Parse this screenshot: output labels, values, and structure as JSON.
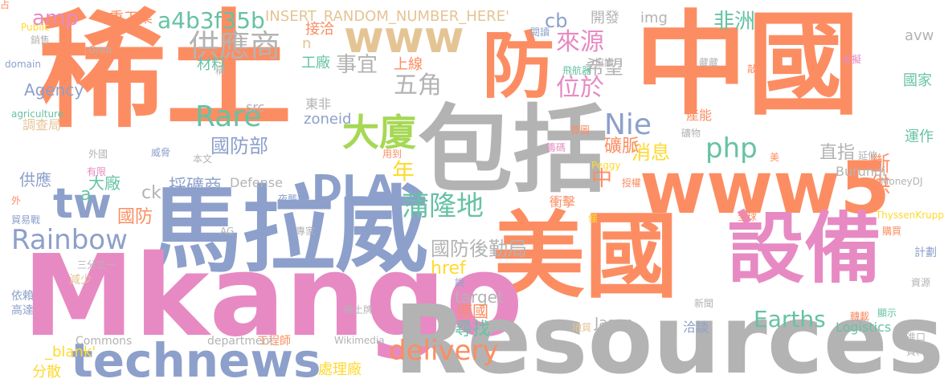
{
  "palette": {
    "orange": "#fc8d62",
    "grey": "#b3b3b3",
    "blue": "#8da0cb",
    "pink": "#e78ac3",
    "green": "#66c2a5",
    "lime": "#a6d854",
    "yellow": "#ffd92f",
    "tan": "#e5c494"
  },
  "words": [
    {
      "text": "稀土",
      "color": "orange"
    },
    {
      "text": "中國",
      "color": "orange"
    },
    {
      "text": "防",
      "color": "orange"
    },
    {
      "text": "包括",
      "color": "grey"
    },
    {
      "text": "www5",
      "color": "orange"
    },
    {
      "text": "馬拉威",
      "color": "blue"
    },
    {
      "text": "美國",
      "color": "orange"
    },
    {
      "text": "設備",
      "color": "pink"
    },
    {
      "text": "Mkango",
      "color": "pink"
    },
    {
      "text": "Resources",
      "color": "grey"
    },
    {
      "text": "technews",
      "color": "blue"
    },
    {
      "text": "www",
      "color": "tan"
    },
    {
      "text": "tw",
      "color": "blue"
    },
    {
      "text": "DLA",
      "color": "blue"
    },
    {
      "text": "大廈",
      "color": "lime"
    },
    {
      "text": "供應商",
      "color": "grey"
    },
    {
      "text": "Rare",
      "color": "green"
    },
    {
      "text": "Nie",
      "color": "blue"
    },
    {
      "text": "php",
      "color": "green"
    },
    {
      "text": "Rainbow",
      "color": "blue"
    },
    {
      "text": "蒲隆地",
      "color": "green"
    },
    {
      "text": "delivery",
      "color": "orange"
    },
    {
      "text": "Earths",
      "color": "green"
    },
    {
      "text": "a4b3f35b",
      "color": "green"
    },
    {
      "text": "amp",
      "color": "pink"
    },
    {
      "text": "來源",
      "color": "pink"
    },
    {
      "text": "位於",
      "color": "pink"
    },
    {
      "text": "五角",
      "color": "grey"
    },
    {
      "text": "事宜",
      "color": "grey"
    },
    {
      "text": "非洲",
      "color": "green"
    },
    {
      "text": "國防部",
      "color": "blue"
    },
    {
      "text": "年",
      "color": "yellow"
    },
    {
      "text": "中",
      "color": "orange"
    },
    {
      "text": "斷供",
      "color": "orange"
    },
    {
      "text": "直指",
      "color": "grey"
    },
    {
      "text": "消息",
      "color": "yellow"
    },
    {
      "text": "礦脈",
      "color": "orange"
    },
    {
      "text": "cb",
      "color": "blue"
    },
    {
      "text": "INSERT_RANDOM_NUMBER_HERE'",
      "color": "tan"
    },
    {
      "text": "重工業",
      "color": "orange"
    },
    {
      "text": "開發",
      "color": "grey"
    },
    {
      "text": "img",
      "color": "grey"
    },
    {
      "text": "avw",
      "color": "grey"
    },
    {
      "text": "國家",
      "color": "green"
    },
    {
      "text": "運作",
      "color": "green"
    },
    {
      "text": "採礦商",
      "color": "blue"
    },
    {
      "text": "國防",
      "color": "orange"
    },
    {
      "text": "a",
      "color": "green"
    },
    {
      "text": "ck",
      "color": "grey"
    },
    {
      "text": "大廠",
      "color": "green"
    },
    {
      "text": "供應",
      "color": "blue"
    },
    {
      "text": "Agency",
      "color": "blue"
    },
    {
      "text": "材料",
      "color": "green"
    },
    {
      "text": "工廠",
      "color": "green"
    },
    {
      "text": "上線",
      "color": "orange"
    },
    {
      "text": "希望",
      "color": "grey"
    },
    {
      "text": "n",
      "color": "tan"
    },
    {
      "text": "接洽",
      "color": "orange"
    },
    {
      "text": "src",
      "color": "grey"
    },
    {
      "text": "東非",
      "color": "grey"
    },
    {
      "text": "zoneid",
      "color": "blue"
    },
    {
      "text": "產能",
      "color": "orange"
    },
    {
      "text": "Burundi",
      "color": "grey"
    },
    {
      "text": "Defense",
      "color": "grey"
    },
    {
      "text": "國防後勤局",
      "color": "grey"
    },
    {
      "text": "href",
      "color": "yellow"
    },
    {
      "text": "衝擊",
      "color": "orange"
    },
    {
      "text": "target",
      "color": "grey"
    },
    {
      "text": "德國",
      "color": "orange"
    },
    {
      "text": "尋找",
      "color": "green"
    },
    {
      "text": "洽談",
      "color": "blue"
    },
    {
      "text": "Logistics",
      "color": "green"
    },
    {
      "text": "Jason",
      "color": "grey"
    },
    {
      "text": "_blank'",
      "color": "yellow"
    },
    {
      "text": "分散",
      "color": "yellow"
    },
    {
      "text": "處理廠",
      "color": "yellow"
    },
    {
      "text": "工程師",
      "color": "orange"
    },
    {
      "text": "department",
      "color": "grey"
    },
    {
      "text": "Commons",
      "color": "grey"
    },
    {
      "text": "Wikimedia",
      "color": "grey"
    },
    {
      "text": "Public",
      "color": "yellow"
    },
    {
      "text": "domain",
      "color": "blue"
    },
    {
      "text": "agriculture",
      "color": "green"
    },
    {
      "text": "調查局",
      "color": "tan"
    },
    {
      "text": "外",
      "color": "orange"
    },
    {
      "text": "貿易戰",
      "color": "blue"
    },
    {
      "text": "三分之一",
      "color": "grey"
    },
    {
      "text": "減少",
      "color": "tan"
    },
    {
      "text": "依賴",
      "color": "blue"
    },
    {
      "text": "高達",
      "color": "blue"
    },
    {
      "text": "閱讀",
      "color": "blue"
    },
    {
      "text": "Greb",
      "color": "grey"
    },
    {
      "text": "稱",
      "color": "grey"
    },
    {
      "text": "飛航器",
      "color": "green"
    },
    {
      "text": "協議",
      "color": "grey"
    },
    {
      "text": "藏藏",
      "color": "grey"
    },
    {
      "text": "敲定",
      "color": "orange"
    },
    {
      "text": "美擬",
      "color": "pink"
    },
    {
      "text": "首圖",
      "color": "orange"
    },
    {
      "text": "礦物",
      "color": "grey"
    },
    {
      "text": "籌碼",
      "color": "pink"
    },
    {
      "text": "威脅",
      "color": "blue"
    },
    {
      "text": "外國",
      "color": "grey"
    },
    {
      "text": "有限",
      "color": "pink"
    },
    {
      "text": "本文",
      "color": "grey"
    },
    {
      "text": "用到",
      "color": "orange"
    },
    {
      "text": "Peggy",
      "color": "yellow"
    },
    {
      "text": "授權",
      "color": "orange"
    },
    {
      "text": "延伸",
      "color": "grey"
    },
    {
      "text": "MoneyDJ",
      "color": "grey"
    },
    {
      "text": "夜襲鋼",
      "color": "blue"
    },
    {
      "text": "AG",
      "color": "grey"
    },
    {
      "text": "專家",
      "color": "grey"
    },
    {
      "text": "僅",
      "color": "yellow"
    },
    {
      "text": "全球",
      "color": "orange"
    },
    {
      "text": "ThyssenKrupp",
      "color": "yellow"
    },
    {
      "text": "購買",
      "color": "orange"
    },
    {
      "text": "計劃",
      "color": "blue"
    },
    {
      "text": "說",
      "color": "blue"
    },
    {
      "text": "稀土牌",
      "color": "grey"
    },
    {
      "text": "新聞",
      "color": "grey"
    },
    {
      "text": "資源",
      "color": "grey"
    },
    {
      "text": "轉載",
      "color": "orange"
    },
    {
      "text": "顯示",
      "color": "green"
    },
    {
      "text": "地質",
      "color": "tan"
    },
    {
      "text": "進口",
      "color": "grey"
    },
    {
      "text": "資料",
      "color": "grey"
    },
    {
      "text": "銷售",
      "color": "grey"
    },
    {
      "text": "美",
      "color": "orange"
    },
    {
      "text": "占",
      "color": "orange"
    }
  ]
}
